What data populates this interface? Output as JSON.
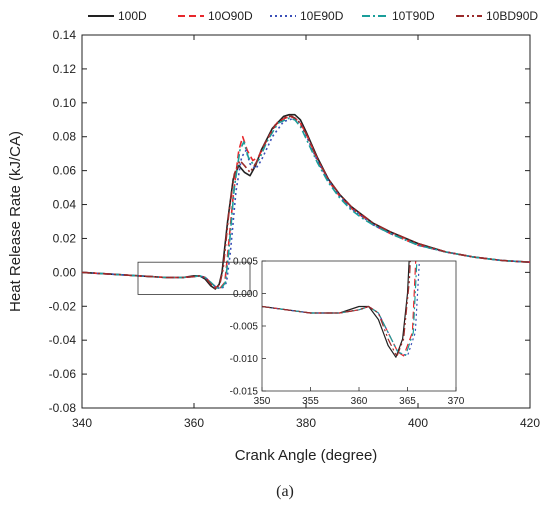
{
  "panel_label": "(a)",
  "chart_data": {
    "type": "line",
    "xlabel": "Crank Angle (degree)",
    "ylabel": "Heat Release Rate (kJ/CA)",
    "xlim": [
      340,
      420
    ],
    "ylim": [
      -0.08,
      0.14
    ],
    "xticks": [
      340,
      360,
      380,
      400,
      420
    ],
    "yticks": [
      -0.08,
      -0.06,
      -0.04,
      -0.02,
      0.0,
      0.02,
      0.04,
      0.06,
      0.08,
      0.1,
      0.12,
      0.14
    ],
    "xtick_labels": [
      "340",
      "360",
      "380",
      "400",
      "420"
    ],
    "ytick_labels": [
      "-0.08",
      "-0.06",
      "-0.04",
      "-0.02",
      "0.00",
      "0.02",
      "0.04",
      "0.06",
      "0.08",
      "0.10",
      "0.12",
      "0.14"
    ],
    "grid": false,
    "legend_position": "top",
    "series": [
      {
        "name": "100D",
        "color": "#222222",
        "dash": "solid",
        "points": [
          [
            340,
            0.0
          ],
          [
            345,
            -0.001
          ],
          [
            350,
            -0.002
          ],
          [
            355,
            -0.003
          ],
          [
            358,
            -0.003
          ],
          [
            360,
            -0.002
          ],
          [
            361,
            -0.002
          ],
          [
            362,
            -0.004
          ],
          [
            363,
            -0.008
          ],
          [
            363.8,
            -0.0098
          ],
          [
            364.5,
            -0.007
          ],
          [
            365,
            0.0
          ],
          [
            366,
            0.03
          ],
          [
            367,
            0.055
          ],
          [
            368,
            0.063
          ],
          [
            369,
            0.059
          ],
          [
            370,
            0.057
          ],
          [
            371,
            0.063
          ],
          [
            372,
            0.072
          ],
          [
            374,
            0.085
          ],
          [
            376,
            0.092
          ],
          [
            377,
            0.093
          ],
          [
            378,
            0.093
          ],
          [
            379,
            0.09
          ],
          [
            380,
            0.083
          ],
          [
            382,
            0.068
          ],
          [
            384,
            0.055
          ],
          [
            386,
            0.046
          ],
          [
            388,
            0.039
          ],
          [
            390,
            0.034
          ],
          [
            392,
            0.029
          ],
          [
            395,
            0.024
          ],
          [
            400,
            0.017
          ],
          [
            405,
            0.012
          ],
          [
            410,
            0.009
          ],
          [
            415,
            0.007
          ],
          [
            420,
            0.006
          ]
        ]
      },
      {
        "name": "10O90D",
        "color": "#e8272b",
        "dash": "7,4",
        "points": [
          [
            340,
            0.0
          ],
          [
            345,
            -0.001
          ],
          [
            350,
            -0.002
          ],
          [
            355,
            -0.003
          ],
          [
            358,
            -0.003
          ],
          [
            360,
            -0.0025
          ],
          [
            361,
            -0.002
          ],
          [
            362,
            -0.003
          ],
          [
            363,
            -0.006
          ],
          [
            364,
            -0.009
          ],
          [
            364.6,
            -0.0096
          ],
          [
            365.5,
            -0.006
          ],
          [
            366,
            0.01
          ],
          [
            367,
            0.045
          ],
          [
            368,
            0.072
          ],
          [
            368.7,
            0.08
          ],
          [
            369.5,
            0.072
          ],
          [
            370.5,
            0.066
          ],
          [
            371.5,
            0.068
          ],
          [
            373,
            0.078
          ],
          [
            375,
            0.089
          ],
          [
            377,
            0.092
          ],
          [
            378,
            0.091
          ],
          [
            379,
            0.088
          ],
          [
            380,
            0.082
          ],
          [
            382,
            0.067
          ],
          [
            384,
            0.054
          ],
          [
            386,
            0.045
          ],
          [
            388,
            0.038
          ],
          [
            390,
            0.033
          ],
          [
            392,
            0.028
          ],
          [
            395,
            0.023
          ],
          [
            400,
            0.016
          ],
          [
            405,
            0.012
          ],
          [
            410,
            0.009
          ],
          [
            415,
            0.007
          ],
          [
            420,
            0.006
          ]
        ]
      },
      {
        "name": "10E90D",
        "color": "#3a4fb8",
        "dash": "2,3",
        "points": [
          [
            340,
            0.0
          ],
          [
            345,
            -0.001
          ],
          [
            350,
            -0.002
          ],
          [
            355,
            -0.003
          ],
          [
            358,
            -0.003
          ],
          [
            360,
            -0.0025
          ],
          [
            361,
            -0.002
          ],
          [
            362,
            -0.003
          ],
          [
            363,
            -0.006
          ],
          [
            364,
            -0.009
          ],
          [
            365,
            -0.0096
          ],
          [
            365.8,
            -0.006
          ],
          [
            366.5,
            0.012
          ],
          [
            367.5,
            0.048
          ],
          [
            368.5,
            0.068
          ],
          [
            369.3,
            0.072
          ],
          [
            370,
            0.064
          ],
          [
            371,
            0.061
          ],
          [
            372,
            0.066
          ],
          [
            374,
            0.08
          ],
          [
            376,
            0.089
          ],
          [
            378,
            0.091
          ],
          [
            379,
            0.088
          ],
          [
            380,
            0.081
          ],
          [
            382,
            0.066
          ],
          [
            384,
            0.054
          ],
          [
            386,
            0.045
          ],
          [
            388,
            0.038
          ],
          [
            390,
            0.033
          ],
          [
            392,
            0.028
          ],
          [
            395,
            0.023
          ],
          [
            400,
            0.016
          ],
          [
            405,
            0.012
          ],
          [
            410,
            0.009
          ],
          [
            415,
            0.007
          ],
          [
            420,
            0.006
          ]
        ]
      },
      {
        "name": "10T90D",
        "color": "#1a9e9a",
        "dash": "8,3,2,3",
        "points": [
          [
            340,
            0.0
          ],
          [
            345,
            -0.001
          ],
          [
            350,
            -0.002
          ],
          [
            355,
            -0.003
          ],
          [
            358,
            -0.003
          ],
          [
            360,
            -0.0025
          ],
          [
            361,
            -0.002
          ],
          [
            362,
            -0.003
          ],
          [
            363,
            -0.006
          ],
          [
            364,
            -0.009
          ],
          [
            364.8,
            -0.0095
          ],
          [
            365.6,
            -0.006
          ],
          [
            366.2,
            0.012
          ],
          [
            367.2,
            0.05
          ],
          [
            368.2,
            0.072
          ],
          [
            368.9,
            0.077
          ],
          [
            369.7,
            0.068
          ],
          [
            370.7,
            0.063
          ],
          [
            371.7,
            0.067
          ],
          [
            373,
            0.077
          ],
          [
            375,
            0.088
          ],
          [
            377,
            0.091
          ],
          [
            378,
            0.09
          ],
          [
            379,
            0.086
          ],
          [
            380,
            0.079
          ],
          [
            382,
            0.065
          ],
          [
            384,
            0.053
          ],
          [
            386,
            0.044
          ],
          [
            388,
            0.037
          ],
          [
            390,
            0.032
          ],
          [
            392,
            0.028
          ],
          [
            395,
            0.023
          ],
          [
            400,
            0.016
          ],
          [
            405,
            0.012
          ],
          [
            410,
            0.009
          ],
          [
            415,
            0.007
          ],
          [
            420,
            0.006
          ]
        ]
      },
      {
        "name": "10BD90D",
        "color": "#9a2a2a",
        "dash": "8,3,2,3,2,3",
        "points": [
          [
            340,
            0.0
          ],
          [
            345,
            -0.001
          ],
          [
            350,
            -0.002
          ],
          [
            355,
            -0.003
          ],
          [
            358,
            -0.003
          ],
          [
            360,
            -0.0025
          ],
          [
            361,
            -0.002
          ],
          [
            362,
            -0.003
          ],
          [
            363,
            -0.007
          ],
          [
            363.9,
            -0.0097
          ],
          [
            364.6,
            -0.007
          ],
          [
            365.2,
            0.002
          ],
          [
            366.2,
            0.034
          ],
          [
            367.2,
            0.058
          ],
          [
            368.2,
            0.066
          ],
          [
            369,
            0.063
          ],
          [
            370,
            0.059
          ],
          [
            371,
            0.064
          ],
          [
            372.5,
            0.075
          ],
          [
            374.5,
            0.087
          ],
          [
            376.5,
            0.092
          ],
          [
            377.5,
            0.092
          ],
          [
            378.5,
            0.09
          ],
          [
            380,
            0.082
          ],
          [
            382,
            0.067
          ],
          [
            384,
            0.055
          ],
          [
            386,
            0.046
          ],
          [
            388,
            0.039
          ],
          [
            390,
            0.034
          ],
          [
            392,
            0.029
          ],
          [
            395,
            0.024
          ],
          [
            400,
            0.017
          ],
          [
            405,
            0.012
          ],
          [
            410,
            0.009
          ],
          [
            415,
            0.007
          ],
          [
            420,
            0.006
          ]
        ]
      }
    ],
    "zoom_box": {
      "xlim": [
        350,
        370
      ],
      "ylim": [
        -0.013,
        0.006
      ]
    },
    "inset": {
      "xlim": [
        350,
        370
      ],
      "ylim": [
        -0.015,
        0.005
      ],
      "xticks": [
        350,
        355,
        360,
        365,
        370
      ],
      "yticks": [
        -0.015,
        -0.01,
        -0.005,
        0.0,
        0.005
      ],
      "xtick_labels": [
        "350",
        "355",
        "360",
        "365",
        "370"
      ],
      "ytick_labels": [
        "-0.015",
        "-0.010",
        "-0.005",
        "0.000",
        "0.005"
      ]
    }
  }
}
